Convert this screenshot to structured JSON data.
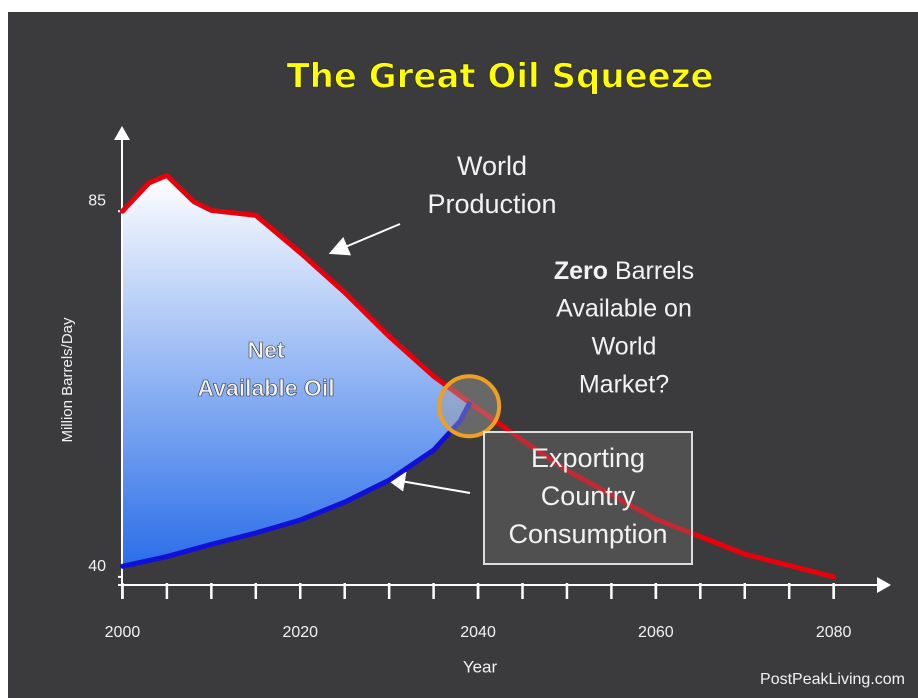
{
  "chart_data": {
    "type": "line",
    "title": "The Great Oil Squeeze",
    "xlabel": "Year",
    "ylabel": "Million Barrels/Day",
    "xlim": [
      1999.5,
      2086
    ],
    "ylim": [
      39,
      95
    ],
    "xticks": [
      2000,
      2020,
      2040,
      2060,
      2080
    ],
    "xminorticks": [
      2000,
      2005,
      2010,
      2015,
      2020,
      2025,
      2030,
      2035,
      2040,
      2045,
      2050,
      2055,
      2060,
      2065,
      2070,
      2075,
      2080
    ],
    "yticks": [
      40,
      85
    ],
    "series": [
      {
        "name": "World Production",
        "color": "#e8000b",
        "x": [
          2000,
          2003,
          2005,
          2008,
          2010,
          2015,
          2020,
          2025,
          2030,
          2035,
          2040,
          2045,
          2050,
          2060,
          2070,
          2080
        ],
        "values": [
          85,
          88.5,
          89.4,
          86.2,
          85.1,
          84.5,
          79.9,
          75,
          69.6,
          64.7,
          60.7,
          56.8,
          53.1,
          47.1,
          42.8,
          40
        ]
      },
      {
        "name": "Exporting Country Consumption",
        "color": "#1010d8",
        "x": [
          2000,
          2005,
          2010,
          2015,
          2020,
          2025,
          2030,
          2035,
          2038,
          2039
        ],
        "values": [
          41.3,
          42.5,
          44,
          45.4,
          47,
          49.2,
          51.9,
          55.6,
          59.2,
          61.3
        ]
      }
    ],
    "annotations": {
      "production": [
        "World",
        "Production"
      ],
      "zero": [
        "Zero",
        "Barrels",
        "Available on",
        "World",
        "Market?"
      ],
      "net": [
        "Net",
        "Available Oil"
      ],
      "consumption": [
        "Exporting",
        "Country",
        "Consumption"
      ],
      "credit": "PostPeakLiving.com"
    },
    "crossing": {
      "x": 2039,
      "y": 61
    }
  }
}
